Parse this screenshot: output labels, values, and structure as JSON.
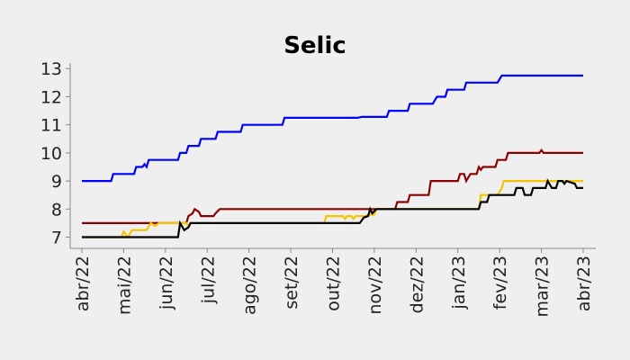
{
  "chart_data": {
    "type": "line",
    "title": "Selic",
    "xlabel": "",
    "ylabel": "",
    "x_ticks": [
      "abr/22",
      "mai/22",
      "jun/22",
      "jul/22",
      "ago/22",
      "set/22",
      "out/22",
      "nov/22",
      "dez/22",
      "jan/23",
      "fev/23",
      "mar/23",
      "abr/23"
    ],
    "x_range": [
      0,
      12
    ],
    "y_ticks": [
      7,
      8,
      9,
      10,
      11,
      12,
      13
    ],
    "ylim": [
      6.6,
      13.2
    ],
    "grid": false,
    "series": [
      {
        "color": "#0000ff",
        "points": [
          [
            0,
            9
          ],
          [
            0.7,
            9
          ],
          [
            0.75,
            9.25
          ],
          [
            1.25,
            9.25
          ],
          [
            1.3,
            9.5
          ],
          [
            1.45,
            9.5
          ],
          [
            1.5,
            9.6
          ],
          [
            1.55,
            9.5
          ],
          [
            1.6,
            9.75
          ],
          [
            2.3,
            9.75
          ],
          [
            2.35,
            10
          ],
          [
            2.5,
            10
          ],
          [
            2.55,
            10.25
          ],
          [
            2.8,
            10.25
          ],
          [
            2.85,
            10.5
          ],
          [
            3.2,
            10.5
          ],
          [
            3.25,
            10.75
          ],
          [
            3.8,
            10.75
          ],
          [
            3.85,
            11
          ],
          [
            4.8,
            11
          ],
          [
            4.85,
            11.25
          ],
          [
            6.6,
            11.25
          ],
          [
            6.7,
            11.28
          ],
          [
            7.3,
            11.28
          ],
          [
            7.35,
            11.5
          ],
          [
            7.8,
            11.5
          ],
          [
            7.85,
            11.75
          ],
          [
            8.4,
            11.75
          ],
          [
            8.5,
            12
          ],
          [
            8.7,
            12
          ],
          [
            8.75,
            12.25
          ],
          [
            9.15,
            12.25
          ],
          [
            9.2,
            12.5
          ],
          [
            9.95,
            12.5
          ],
          [
            10.05,
            12.75
          ],
          [
            12,
            12.75
          ]
        ]
      },
      {
        "color": "#8b0000",
        "points": [
          [
            0,
            7.5
          ],
          [
            2.5,
            7.5
          ],
          [
            2.55,
            7.75
          ],
          [
            2.65,
            7.85
          ],
          [
            2.7,
            8
          ],
          [
            2.8,
            7.9
          ],
          [
            2.85,
            7.75
          ],
          [
            3.15,
            7.75
          ],
          [
            3.2,
            7.85
          ],
          [
            3.3,
            8
          ],
          [
            7.5,
            8
          ],
          [
            7.55,
            8.25
          ],
          [
            7.8,
            8.25
          ],
          [
            7.85,
            8.5
          ],
          [
            8.3,
            8.5
          ],
          [
            8.35,
            9
          ],
          [
            9.0,
            9
          ],
          [
            9.05,
            9.25
          ],
          [
            9.15,
            9.25
          ],
          [
            9.2,
            9
          ],
          [
            9.3,
            9.25
          ],
          [
            9.45,
            9.25
          ],
          [
            9.5,
            9.5
          ],
          [
            9.55,
            9.4
          ],
          [
            9.6,
            9.5
          ],
          [
            9.9,
            9.5
          ],
          [
            9.95,
            9.75
          ],
          [
            10.15,
            9.75
          ],
          [
            10.2,
            10
          ],
          [
            10.95,
            10
          ],
          [
            11.0,
            10.1
          ],
          [
            11.05,
            10
          ],
          [
            12,
            10
          ]
        ]
      },
      {
        "color": "#f5c400",
        "points": [
          [
            0,
            7
          ],
          [
            0.95,
            7
          ],
          [
            1.0,
            7.2
          ],
          [
            1.1,
            7
          ],
          [
            1.2,
            7.25
          ],
          [
            1.55,
            7.25
          ],
          [
            1.65,
            7.5
          ],
          [
            1.75,
            7.4
          ],
          [
            1.85,
            7.5
          ],
          [
            2.5,
            7.5
          ],
          [
            2.55,
            7.4
          ],
          [
            2.6,
            7.5
          ],
          [
            5.8,
            7.5
          ],
          [
            5.85,
            7.75
          ],
          [
            6.25,
            7.75
          ],
          [
            6.3,
            7.65
          ],
          [
            6.35,
            7.75
          ],
          [
            6.45,
            7.75
          ],
          [
            6.5,
            7.65
          ],
          [
            6.55,
            7.75
          ],
          [
            6.8,
            7.75
          ],
          [
            6.85,
            7.8
          ],
          [
            7.0,
            7.8
          ],
          [
            7.05,
            8
          ],
          [
            9.5,
            8
          ],
          [
            9.55,
            8.5
          ],
          [
            9.95,
            8.5
          ],
          [
            10.05,
            8.75
          ],
          [
            10.1,
            9
          ],
          [
            12,
            9
          ]
        ]
      },
      {
        "color": "#000000",
        "points": [
          [
            0,
            7
          ],
          [
            2.3,
            7
          ],
          [
            2.35,
            7.5
          ],
          [
            2.45,
            7.25
          ],
          [
            2.55,
            7.35
          ],
          [
            2.6,
            7.5
          ],
          [
            6.65,
            7.5
          ],
          [
            6.75,
            7.7
          ],
          [
            6.85,
            7.75
          ],
          [
            6.9,
            8
          ],
          [
            6.95,
            7.85
          ],
          [
            7.05,
            8
          ],
          [
            9.5,
            8
          ],
          [
            9.55,
            8.25
          ],
          [
            9.7,
            8.25
          ],
          [
            9.75,
            8.5
          ],
          [
            10.35,
            8.5
          ],
          [
            10.4,
            8.75
          ],
          [
            10.55,
            8.75
          ],
          [
            10.6,
            8.5
          ],
          [
            10.75,
            8.5
          ],
          [
            10.8,
            8.75
          ],
          [
            11.1,
            8.75
          ],
          [
            11.15,
            9
          ],
          [
            11.25,
            8.75
          ],
          [
            11.35,
            8.75
          ],
          [
            11.4,
            9
          ],
          [
            11.5,
            9
          ],
          [
            11.55,
            8.9
          ],
          [
            11.6,
            9
          ],
          [
            11.8,
            8.9
          ],
          [
            11.85,
            8.75
          ],
          [
            12,
            8.75
          ]
        ]
      }
    ]
  }
}
